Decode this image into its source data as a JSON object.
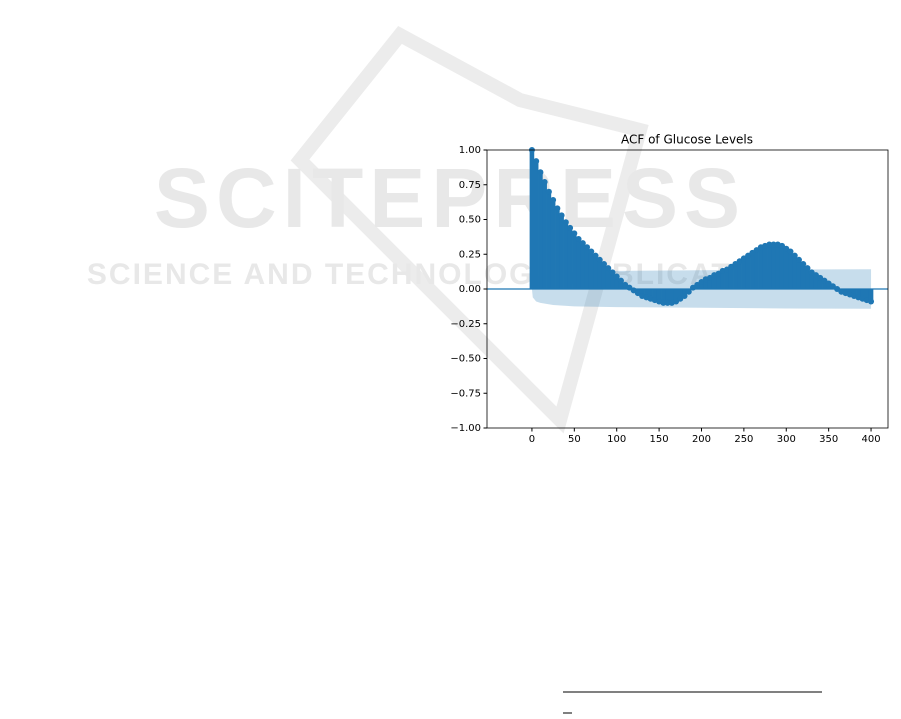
{
  "watermark": {
    "title": "SCITEPRESS",
    "subtitle": "SCIENCE AND TECHNOLOGY PUBLICATIONS"
  },
  "chart_data": {
    "type": "stem",
    "title": "ACF of Glucose Levels",
    "color": "#1f77b4",
    "x": [
      0,
      5,
      10,
      15,
      20,
      25,
      30,
      35,
      40,
      45,
      50,
      55,
      60,
      65,
      70,
      75,
      80,
      85,
      90,
      95,
      100,
      105,
      110,
      115,
      120,
      125,
      130,
      135,
      140,
      145,
      150,
      155,
      160,
      165,
      170,
      175,
      180,
      185,
      190,
      195,
      200,
      205,
      210,
      215,
      220,
      225,
      230,
      235,
      240,
      245,
      250,
      255,
      260,
      265,
      270,
      275,
      280,
      285,
      290,
      295,
      300,
      305,
      310,
      315,
      320,
      325,
      330,
      335,
      340,
      345,
      350,
      355,
      360,
      365,
      370,
      375,
      380,
      385,
      390,
      395,
      400
    ],
    "values": [
      1.0,
      0.92,
      0.84,
      0.77,
      0.7,
      0.64,
      0.58,
      0.53,
      0.48,
      0.44,
      0.4,
      0.36,
      0.33,
      0.3,
      0.27,
      0.24,
      0.21,
      0.18,
      0.15,
      0.12,
      0.09,
      0.06,
      0.03,
      0.01,
      -0.01,
      -0.03,
      -0.05,
      -0.06,
      -0.07,
      -0.08,
      -0.09,
      -0.1,
      -0.1,
      -0.1,
      -0.09,
      -0.07,
      -0.05,
      -0.02,
      0.01,
      0.03,
      0.05,
      0.07,
      0.08,
      0.1,
      0.11,
      0.13,
      0.14,
      0.16,
      0.18,
      0.2,
      0.22,
      0.24,
      0.26,
      0.28,
      0.3,
      0.31,
      0.32,
      0.32,
      0.32,
      0.31,
      0.29,
      0.27,
      0.24,
      0.21,
      0.18,
      0.15,
      0.12,
      0.1,
      0.08,
      0.06,
      0.04,
      0.02,
      0.0,
      -0.02,
      -0.03,
      -0.04,
      -0.05,
      -0.06,
      -0.07,
      -0.08,
      -0.09
    ],
    "band_lags": [
      0,
      1,
      5,
      10,
      25,
      50,
      100,
      200,
      300,
      400
    ],
    "confidence_band": [
      0,
      0.06,
      0.09,
      0.1,
      0.115,
      0.125,
      0.13,
      0.135,
      0.14,
      0.142
    ],
    "xlim": [
      -53,
      420
    ],
    "ylim": [
      -1,
      1
    ],
    "xticks": [
      0,
      50,
      100,
      150,
      200,
      250,
      300,
      350,
      400
    ],
    "yticks": [
      {
        "value": -1,
        "label": "−1.00"
      },
      {
        "value": -0.75,
        "label": "−0.75"
      },
      {
        "value": -0.5,
        "label": "−0.50"
      },
      {
        "value": -0.25,
        "label": "−0.25"
      },
      {
        "value": 0,
        "label": "0.00"
      },
      {
        "value": 0.25,
        "label": "0.25"
      },
      {
        "value": 0.5,
        "label": "0.50"
      },
      {
        "value": 0.75,
        "label": "0.75"
      },
      {
        "value": 1,
        "label": "1.00"
      }
    ]
  }
}
